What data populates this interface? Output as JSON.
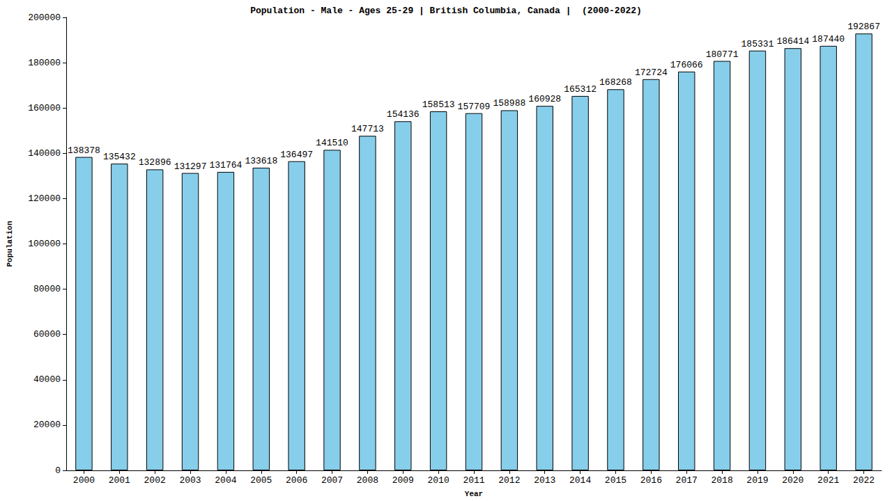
{
  "chart_data": {
    "type": "bar",
    "title": "Population - Male - Ages 25-29 | British Columbia, Canada |  (2000-2022)",
    "x_label": "Year",
    "y_label": "Population",
    "categories": [
      "2000",
      "2001",
      "2002",
      "2003",
      "2004",
      "2005",
      "2006",
      "2007",
      "2008",
      "2009",
      "2010",
      "2011",
      "2012",
      "2013",
      "2014",
      "2015",
      "2016",
      "2017",
      "2018",
      "2019",
      "2020",
      "2021",
      "2022"
    ],
    "values": [
      138378,
      135432,
      132896,
      131297,
      131764,
      133618,
      136497,
      141510,
      147713,
      154136,
      158513,
      157709,
      158988,
      160928,
      165312,
      168268,
      172724,
      176066,
      180771,
      185331,
      186414,
      187440,
      192867
    ],
    "color": "#87ceeb",
    "ylim": [
      0,
      200000
    ],
    "yticks": [
      0,
      20000,
      40000,
      60000,
      80000,
      100000,
      120000,
      140000,
      160000,
      180000,
      200000
    ],
    "grid": false,
    "data_labels": true
  }
}
